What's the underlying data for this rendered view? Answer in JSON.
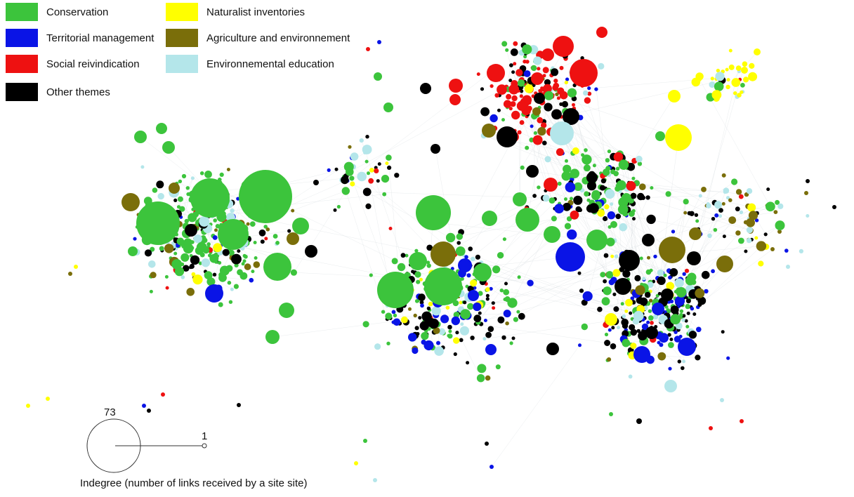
{
  "legend": [
    {
      "label": "Conservation",
      "color": "#3cc43c"
    },
    {
      "label": "Territorial management",
      "color": "#0a14e6"
    },
    {
      "label": "Social reivindication",
      "color": "#ee1111"
    },
    {
      "label": "Other themes",
      "color": "#000000"
    },
    {
      "label": "Naturalist inventories",
      "color": "#ffff00"
    },
    {
      "label": "Agriculture and environnement",
      "color": "#7a6e0a"
    },
    {
      "label": "Environnemental education",
      "color": "#b4e6ea"
    }
  ],
  "size_key": {
    "max_value": "73",
    "min_value": "1"
  },
  "caption": "Indegree (number of links received by a site site)"
}
